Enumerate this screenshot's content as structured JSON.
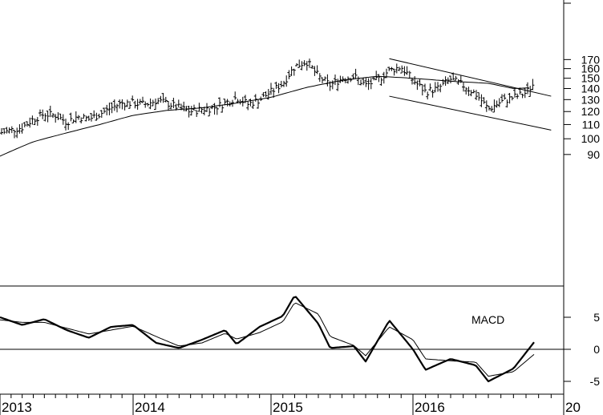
{
  "chart_data": [
    {
      "type": "ohlc",
      "panel": "price",
      "y_scale": "log",
      "ylim": [
        85,
        180
      ],
      "y_ticks": [
        90,
        100,
        110,
        120,
        130,
        140,
        150,
        160,
        170
      ],
      "x_ticks": [
        "2013",
        "2014",
        "2015",
        "2016",
        "20"
      ],
      "grid": false,
      "series": [
        {
          "role": "weekly-price-bars",
          "points": [
            [
              "2013-01",
              104
            ],
            [
              "2013-02",
              106
            ],
            [
              "2013-03",
              108
            ],
            [
              "2013-04",
              114
            ],
            [
              "2013-05",
              118
            ],
            [
              "2013-06",
              117
            ],
            [
              "2013-07",
              112
            ],
            [
              "2013-08",
              116
            ],
            [
              "2013-09",
              114
            ],
            [
              "2013-10",
              118
            ],
            [
              "2013-11",
              123
            ],
            [
              "2013-12",
              127
            ],
            [
              "2014-01",
              127
            ],
            [
              "2014-02",
              126
            ],
            [
              "2014-03",
              129
            ],
            [
              "2014-04",
              127
            ],
            [
              "2014-05",
              123
            ],
            [
              "2014-06",
              120
            ],
            [
              "2014-07",
              122
            ],
            [
              "2014-08",
              123
            ],
            [
              "2014-09",
              127
            ],
            [
              "2014-10",
              132
            ],
            [
              "2014-11",
              126
            ],
            [
              "2014-12",
              130
            ],
            [
              "2015-01",
              137
            ],
            [
              "2015-02",
              145
            ],
            [
              "2015-03",
              162
            ],
            [
              "2015-04",
              168
            ],
            [
              "2015-05",
              152
            ],
            [
              "2015-06",
              143
            ],
            [
              "2015-07",
              150
            ],
            [
              "2015-08",
              152
            ],
            [
              "2015-09",
              143
            ],
            [
              "2015-10",
              148
            ],
            [
              "2015-11",
              158
            ],
            [
              "2015-12",
              162
            ],
            [
              "2016-01",
              148
            ],
            [
              "2016-02",
              137
            ],
            [
              "2016-03",
              140
            ],
            [
              "2016-04",
              149
            ],
            [
              "2016-05",
              143
            ],
            [
              "2016-06",
              135
            ],
            [
              "2016-07",
              122
            ],
            [
              "2016-08",
              128
            ],
            [
              "2016-09",
              132
            ],
            [
              "2016-10",
              136
            ],
            [
              "2016-11",
              150
            ]
          ]
        },
        {
          "role": "moving-average",
          "points": [
            [
              "2013-01",
              89
            ],
            [
              "2013-04",
              98
            ],
            [
              "2013-07",
              104
            ],
            [
              "2013-10",
              110
            ],
            [
              "2014-01",
              117
            ],
            [
              "2014-04",
              121
            ],
            [
              "2014-07",
              123
            ],
            [
              "2014-10",
              127
            ],
            [
              "2015-01",
              132
            ],
            [
              "2015-04",
              141
            ],
            [
              "2015-07",
              148
            ],
            [
              "2015-10",
              152
            ],
            [
              "2016-01",
              150
            ],
            [
              "2016-04",
              147
            ],
            [
              "2016-07",
              145
            ],
            [
              "2016-09",
              140
            ],
            [
              "2016-11",
              141
            ]
          ]
        },
        {
          "role": "upper-channel-line",
          "points": [
            [
              "2015-11",
              171
            ],
            [
              "2016-12",
              133
            ]
          ]
        },
        {
          "role": "lower-channel-line",
          "points": [
            [
              "2015-11",
              133
            ],
            [
              "2016-12",
              106
            ]
          ]
        }
      ]
    },
    {
      "type": "line",
      "panel": "macd",
      "title": "MACD",
      "ylim": [
        -6,
        10
      ],
      "y_ticks": [
        -5,
        0,
        5
      ],
      "series": [
        {
          "role": "macd-line",
          "points": [
            [
              "2013-01",
              5.0
            ],
            [
              "2013-03",
              3.8
            ],
            [
              "2013-05",
              4.7
            ],
            [
              "2013-07",
              3.0
            ],
            [
              "2013-09",
              1.8
            ],
            [
              "2013-11",
              3.5
            ],
            [
              "2014-01",
              3.8
            ],
            [
              "2014-03",
              1.0
            ],
            [
              "2014-05",
              0.2
            ],
            [
              "2014-07",
              1.5
            ],
            [
              "2014-09",
              3.0
            ],
            [
              "2014-10",
              0.8
            ],
            [
              "2014-12",
              3.5
            ],
            [
              "2015-02",
              5.2
            ],
            [
              "2015-03",
              8.4
            ],
            [
              "2015-05",
              4.0
            ],
            [
              "2015-06",
              0.2
            ],
            [
              "2015-08",
              0.5
            ],
            [
              "2015-09",
              -1.9
            ],
            [
              "2015-11",
              4.5
            ],
            [
              "2016-01",
              0.0
            ],
            [
              "2016-02",
              -3.2
            ],
            [
              "2016-04",
              -1.5
            ],
            [
              "2016-06",
              -2.5
            ],
            [
              "2016-07",
              -5.0
            ],
            [
              "2016-09",
              -3.0
            ],
            [
              "2016-11",
              2.0
            ]
          ]
        },
        {
          "role": "signal-line",
          "points": [
            [
              "2013-01",
              4.6
            ],
            [
              "2013-03",
              4.2
            ],
            [
              "2013-05",
              4.2
            ],
            [
              "2013-07",
              3.3
            ],
            [
              "2013-09",
              2.4
            ],
            [
              "2013-11",
              3.0
            ],
            [
              "2014-01",
              3.6
            ],
            [
              "2014-03",
              2.0
            ],
            [
              "2014-05",
              0.5
            ],
            [
              "2014-07",
              1.0
            ],
            [
              "2014-09",
              2.5
            ],
            [
              "2014-10",
              1.6
            ],
            [
              "2014-12",
              2.6
            ],
            [
              "2015-02",
              4.3
            ],
            [
              "2015-03",
              7.3
            ],
            [
              "2015-05",
              5.5
            ],
            [
              "2015-06",
              2.0
            ],
            [
              "2015-08",
              0.6
            ],
            [
              "2015-09",
              -1.0
            ],
            [
              "2015-11",
              3.5
            ],
            [
              "2016-01",
              1.5
            ],
            [
              "2016-02",
              -1.5
            ],
            [
              "2016-04",
              -1.8
            ],
            [
              "2016-06",
              -2.0
            ],
            [
              "2016-07",
              -4.2
            ],
            [
              "2016-09",
              -3.5
            ],
            [
              "2016-11",
              -0.2
            ]
          ]
        },
        {
          "role": "zero-line",
          "value": 0
        }
      ]
    }
  ]
}
